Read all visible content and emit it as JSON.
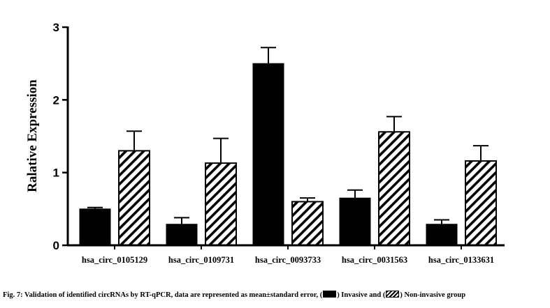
{
  "chart_data": {
    "type": "bar",
    "ylabel": "Ralative Expression",
    "xlabel": "",
    "ylim": [
      0,
      3
    ],
    "yticks": [
      "0",
      "1",
      "2",
      "3"
    ],
    "categories": [
      "hsa_circ_0105129",
      "hsa_circ_0109731",
      "hsa_circ_0093733",
      "hsa_circ_0031563",
      "hsa_circ_0133631"
    ],
    "series": [
      {
        "name": "Invasive",
        "fill": "solid",
        "color": "#000000",
        "values": [
          0.5,
          0.29,
          2.5,
          0.65,
          0.29
        ],
        "errors": [
          0.02,
          0.09,
          0.22,
          0.11,
          0.06
        ]
      },
      {
        "name": "Non-invasive",
        "fill": "hatched",
        "color": "#000000",
        "values": [
          1.3,
          1.13,
          0.6,
          1.56,
          1.16
        ],
        "errors": [
          0.27,
          0.34,
          0.05,
          0.21,
          0.21
        ]
      }
    ]
  },
  "caption": {
    "prefix": "Fig. 7:  Validation of identified circRNAs by RT-qPCR, data are represented as mean±standard error, (",
    "middle": ") Invasive and (",
    "suffix": ") Non-invasive group"
  }
}
